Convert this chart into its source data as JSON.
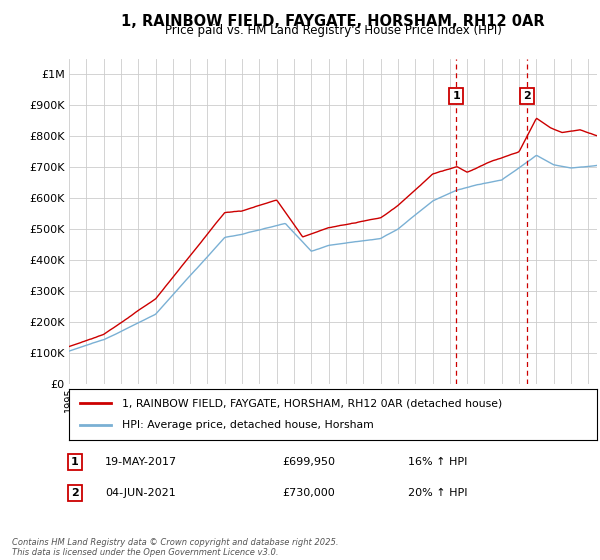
{
  "title_line1": "1, RAINBOW FIELD, FAYGATE, HORSHAM, RH12 0AR",
  "title_line2": "Price paid vs. HM Land Registry's House Price Index (HPI)",
  "ylim": [
    0,
    1050000
  ],
  "yticks": [
    0,
    100000,
    200000,
    300000,
    400000,
    500000,
    600000,
    700000,
    800000,
    900000,
    1000000
  ],
  "ytick_labels": [
    "£0",
    "£100K",
    "£200K",
    "£300K",
    "£400K",
    "£500K",
    "£600K",
    "£700K",
    "£800K",
    "£900K",
    "£1M"
  ],
  "sale1_x": 2017.38,
  "sale2_x": 2021.46,
  "legend_line1": "1, RAINBOW FIELD, FAYGATE, HORSHAM, RH12 0AR (detached house)",
  "legend_line2": "HPI: Average price, detached house, Horsham",
  "ann1_label": "1",
  "ann1_date": "19-MAY-2017",
  "ann1_price": "£699,950",
  "ann1_hpi": "16% ↑ HPI",
  "ann2_label": "2",
  "ann2_date": "04-JUN-2021",
  "ann2_price": "£730,000",
  "ann2_hpi": "20% ↑ HPI",
  "footer": "Contains HM Land Registry data © Crown copyright and database right 2025.\nThis data is licensed under the Open Government Licence v3.0.",
  "line1_color": "#cc0000",
  "line2_color": "#7ab0d4",
  "background_color": "#ffffff",
  "grid_color": "#cccccc",
  "fig_width": 6.0,
  "fig_height": 5.6,
  "dpi": 100
}
